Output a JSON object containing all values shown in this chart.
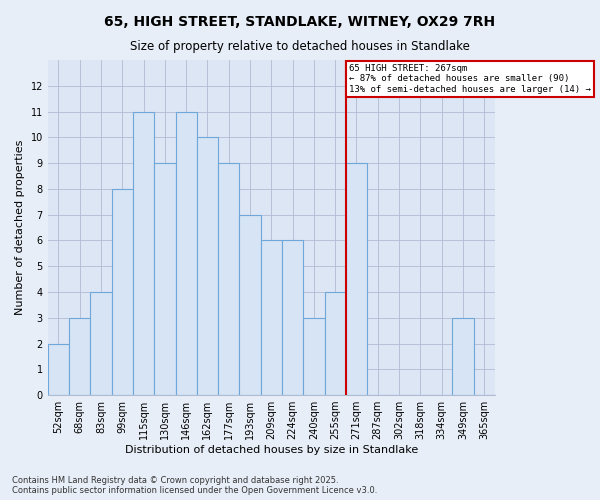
{
  "title": "65, HIGH STREET, STANDLAKE, WITNEY, OX29 7RH",
  "subtitle": "Size of property relative to detached houses in Standlake",
  "xlabel": "Distribution of detached houses by size in Standlake",
  "ylabel": "Number of detached properties",
  "categories": [
    "52sqm",
    "68sqm",
    "83sqm",
    "99sqm",
    "115sqm",
    "130sqm",
    "146sqm",
    "162sqm",
    "177sqm",
    "193sqm",
    "209sqm",
    "224sqm",
    "240sqm",
    "255sqm",
    "271sqm",
    "287sqm",
    "302sqm",
    "318sqm",
    "334sqm",
    "349sqm",
    "365sqm"
  ],
  "values": [
    2,
    3,
    4,
    8,
    11,
    9,
    11,
    10,
    9,
    7,
    6,
    6,
    3,
    4,
    9,
    0,
    0,
    0,
    0,
    3,
    0
  ],
  "bar_fill": "#d6e4f5",
  "bar_edge": "#6fa8d8",
  "annotation_box_color": "#cc0000",
  "annotation_text_line1": "65 HIGH STREET: 267sqm",
  "annotation_text_line2": "← 87% of detached houses are smaller (90)",
  "annotation_text_line3": "13% of semi-detached houses are larger (14) →",
  "redline_after_index": 13,
  "footnote1": "Contains HM Land Registry data © Crown copyright and database right 2025.",
  "footnote2": "Contains public sector information licensed under the Open Government Licence v3.0.",
  "ylim_max": 13,
  "background_color": "#e8eef7",
  "plot_background": "#dce6f5",
  "grid_color": "#b0bcd4",
  "title_fontsize": 10,
  "subtitle_fontsize": 8.5,
  "tick_fontsize": 7,
  "label_fontsize": 8,
  "footnote_fontsize": 6
}
